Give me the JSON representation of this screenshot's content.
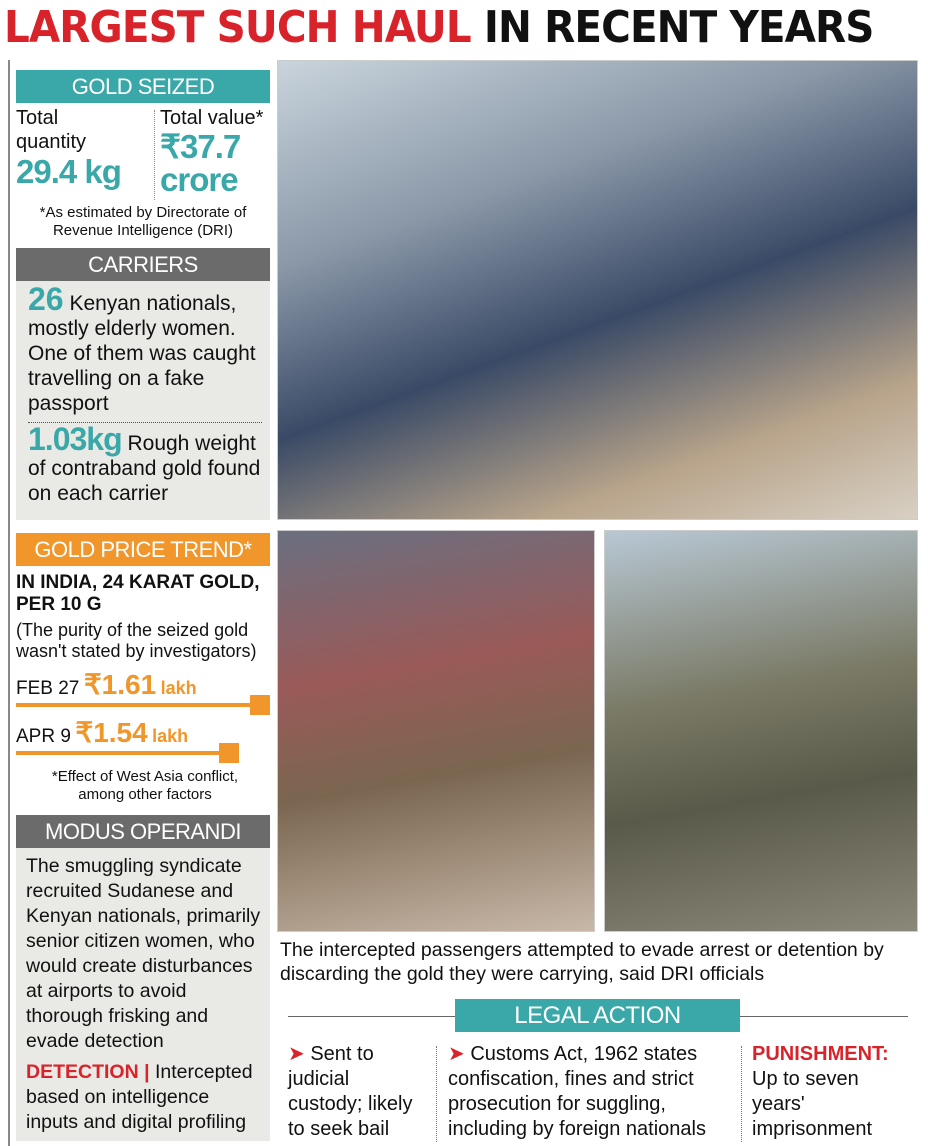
{
  "headline": {
    "part1": "LARGEST SUCH HAUL",
    "part2": "IN RECENT YEARS"
  },
  "gold_seized": {
    "header": "GOLD SEIZED",
    "quantity_label": "Total quantity",
    "quantity_value": "29.4 kg",
    "value_label": "Total value*",
    "value_amount": "₹37.7 crore",
    "footnote": "*As estimated by Directorate of Revenue Intelligence (DRI)"
  },
  "carriers": {
    "header": "CARRIERS",
    "count": "26",
    "count_text": "Kenyan nationals, mostly elderly women. One of them was caught travelling on a fake passport",
    "weight": "1.03kg",
    "weight_text": "Rough weight of contraband gold found on each carrier"
  },
  "gold_price": {
    "header": "GOLD PRICE TREND*",
    "subhead": "IN INDIA, 24 KARAT GOLD, PER 10 G",
    "note": "(The purity of the seized gold wasn't stated by investigators)",
    "rows": [
      {
        "date": "FEB 27",
        "value": "₹1.61",
        "unit": "lakh",
        "amount": 1.61
      },
      {
        "date": "APR 9",
        "value": "₹1.54",
        "unit": "lakh",
        "amount": 1.54
      }
    ],
    "footnote": "*Effect of West Asia conflict, among other factors",
    "accent": "#f0962a"
  },
  "modus": {
    "header": "MODUS OPERANDI",
    "text": "The smuggling syndicate recruited Sudanese and Kenyan nationals, primarily senior citizen women, who would create disturbances at airports to avoid thorough frisking and evade detection",
    "detection_label": "DETECTION |",
    "detection_text": "Intercepted based on intelligence inputs and digital profiling"
  },
  "caption": "The intercepted passengers attempted to evade arrest or detention by discarding the gold they were carrying, said DRI officials",
  "legal": {
    "header": "LEGAL ACTION",
    "col1": "Sent to judicial custody; likely to seek bail",
    "col2": "Customs Act, 1962 states confiscation, fines and strict prosecution for suggling, including by foreign nationals",
    "col3_label": "PUNISHMENT:",
    "col3": "Up to seven years' imprisonment"
  },
  "colors": {
    "red": "#d8232a",
    "teal": "#3aa8a8",
    "gray": "#6b6b6b",
    "orange": "#f0962a"
  }
}
